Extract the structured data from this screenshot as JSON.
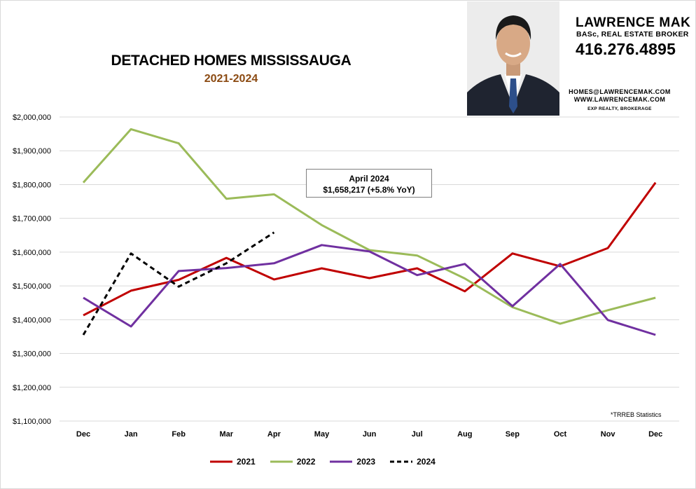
{
  "header": {
    "title": "DETACHED HOMES MISSISSAUGA",
    "subtitle": "2021-2024"
  },
  "branding": {
    "name": "LAWRENCE MAK",
    "role": "BASc, REAL ESTATE BROKER",
    "phone": "416.276.4895",
    "email": "HOMES@LAWRENCEMAK.COM",
    "website": "WWW.LAWRENCEMAK.COM",
    "brokerage": "EXP REALTY, BROKERAGE"
  },
  "callout": {
    "line1": "April 2024",
    "line2": "$1,658,217  (+5.8%  YoY)"
  },
  "footnote": "*TRREB Statistics",
  "colors": {
    "grid": "#d9d9d9",
    "callout_border": "#7f7f7f",
    "subtitle": "#8b4a12"
  },
  "chart_data": {
    "type": "line",
    "categories": [
      "Dec",
      "Jan",
      "Feb",
      "Mar",
      "Apr",
      "May",
      "Jun",
      "Jul",
      "Aug",
      "Sep",
      "Oct",
      "Nov",
      "Dec"
    ],
    "y_tick_labels": [
      "$2,000,000",
      "$1,900,000",
      "$1,800,000",
      "$1,700,000",
      "$1,600,000",
      "$1,500,000",
      "$1,400,000",
      "$1,300,000",
      "$1,200,000",
      "$1,100,000"
    ],
    "ylim": [
      1100000,
      2000000
    ],
    "grid": true,
    "legend_position": "bottom",
    "series": [
      {
        "name": "2021",
        "color": "#c00000",
        "dash": "solid",
        "values": [
          1413000,
          1486000,
          1518000,
          1583000,
          1519000,
          1552000,
          1523000,
          1552000,
          1484000,
          1596000,
          1558000,
          1612000,
          1806000
        ]
      },
      {
        "name": "2022",
        "color": "#9bbb59",
        "dash": "solid",
        "values": [
          1806000,
          1964000,
          1922000,
          1758000,
          1771000,
          1680000,
          1606000,
          1590000,
          1522000,
          1437000,
          1388000,
          1428000,
          1465000
        ]
      },
      {
        "name": "2023",
        "color": "#7030a0",
        "dash": "solid",
        "values": [
          1465000,
          1380000,
          1544000,
          1553000,
          1567000,
          1621000,
          1602000,
          1532000,
          1565000,
          1440000,
          1565000,
          1399000,
          1355000
        ]
      },
      {
        "name": "2024",
        "color": "#000000",
        "dash": "dashed",
        "values": [
          1355000,
          1596000,
          1498000,
          1567000,
          1658217,
          null,
          null,
          null,
          null,
          null,
          null,
          null,
          null
        ]
      }
    ]
  }
}
